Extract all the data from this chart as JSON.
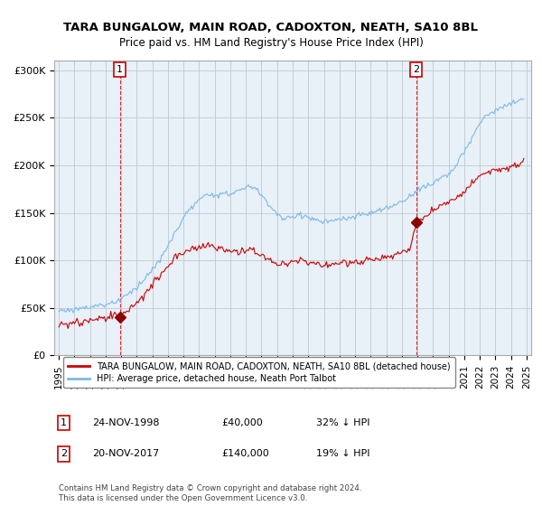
{
  "title": "TARA BUNGALOW, MAIN ROAD, CADOXTON, NEATH, SA10 8BL",
  "subtitle": "Price paid vs. HM Land Registry's House Price Index (HPI)",
  "legend_line1": "TARA BUNGALOW, MAIN ROAD, CADOXTON, NEATH, SA10 8BL (detached house)",
  "legend_line2": "HPI: Average price, detached house, Neath Port Talbot",
  "transaction1_date": "24-NOV-1998",
  "transaction1_price": "£40,000",
  "transaction1_hpi": "32% ↓ HPI",
  "transaction2_date": "20-NOV-2017",
  "transaction2_price": "£140,000",
  "transaction2_hpi": "19% ↓ HPI",
  "footnote": "Contains HM Land Registry data © Crown copyright and database right 2024.\nThis data is licensed under the Open Government Licence v3.0.",
  "hpi_color": "#7cb9e8",
  "price_color": "#cc0000",
  "marker_color": "#8b0000",
  "vline_color": "#cc0000",
  "bg_plot_color": "#e8f0f8",
  "background_color": "#ffffff",
  "grid_color": "#c0c8d0",
  "ylim": [
    0,
    310000
  ],
  "yticks": [
    0,
    50000,
    100000,
    150000,
    200000,
    250000,
    300000
  ],
  "ytick_labels": [
    "£0",
    "£50K",
    "£100K",
    "£150K",
    "£200K",
    "£250K",
    "£300K"
  ],
  "xlim_start": 1994.7,
  "xlim_end": 2025.3,
  "xtick_years": [
    1995,
    1996,
    1997,
    1998,
    1999,
    2000,
    2001,
    2002,
    2003,
    2004,
    2005,
    2006,
    2007,
    2008,
    2009,
    2010,
    2011,
    2012,
    2013,
    2014,
    2015,
    2016,
    2017,
    2018,
    2019,
    2020,
    2021,
    2022,
    2023,
    2024,
    2025
  ]
}
